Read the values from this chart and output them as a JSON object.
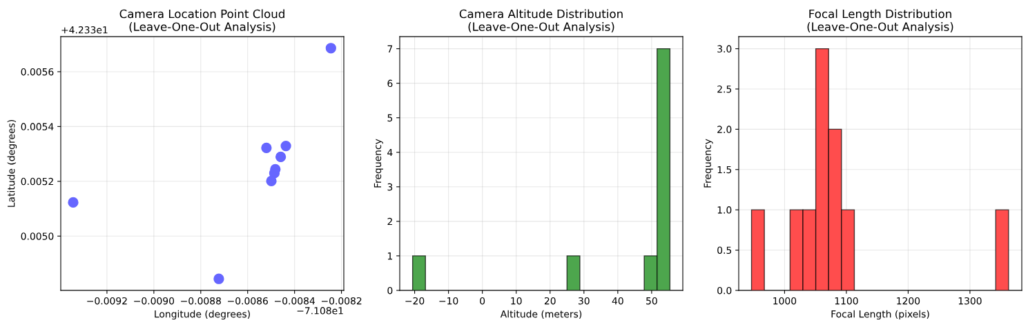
{
  "chart_data": [
    {
      "type": "scatter",
      "title": "Camera Location Point Cloud\n(Leave-One-Out Analysis)",
      "xlabel": "Longitude (degrees)",
      "ylabel": "Latitude (degrees)",
      "x": [
        -0.008245,
        -0.00852,
        -0.008437,
        -0.008459,
        -0.008482,
        -0.008486,
        -0.008499,
        -0.009344,
        -0.008723
      ],
      "values": [
        0.005686,
        0.005322,
        0.005329,
        0.005289,
        0.005244,
        0.00523,
        0.005201,
        0.005123,
        0.004844
      ],
      "color": "#6666ff",
      "marker": "circle",
      "xlim": [
        -0.009397,
        -0.00819
      ],
      "ylim": [
        0.004802,
        0.005728
      ],
      "xticks": [
        {
          "value": -0.0092,
          "label": "−0.0092"
        },
        {
          "value": -0.009,
          "label": "−0.0090"
        },
        {
          "value": -0.0088,
          "label": "−0.0088"
        },
        {
          "value": -0.0086,
          "label": "−0.0086"
        },
        {
          "value": -0.0084,
          "label": "−0.0084"
        },
        {
          "value": -0.0082,
          "label": "−0.0082"
        }
      ],
      "yticks": [
        {
          "value": 0.005,
          "label": "0.0050"
        },
        {
          "value": 0.0052,
          "label": "0.0052"
        },
        {
          "value": 0.0054,
          "label": "0.0054"
        },
        {
          "value": 0.0056,
          "label": "0.0056"
        }
      ],
      "annotations": [
        "+4.233e1",
        "−7.108e1"
      ],
      "grid": true
    },
    {
      "type": "histogram",
      "title": "Camera Altitude Distribution\n(Leave-One-Out Analysis)",
      "xlabel": "Altitude (meters)",
      "ylabel": "Frequency",
      "bins": [
        -20.6,
        -16.8,
        -13.0,
        -9.2,
        -5.4,
        -1.6,
        2.2,
        6.0,
        9.8,
        13.6,
        17.4,
        21.2,
        25.0,
        28.8,
        32.6,
        36.4,
        40.2,
        44.0,
        47.8,
        51.6,
        55.4
      ],
      "values": [
        1,
        0,
        0,
        0,
        0,
        0,
        0,
        0,
        0,
        0,
        0,
        0,
        1,
        0,
        0,
        0,
        0,
        0,
        1,
        7
      ],
      "color": "#4da64d",
      "xlim": [
        -24.4,
        59.2
      ],
      "ylim": [
        0,
        7.35
      ],
      "xticks": [
        -20,
        -10,
        0,
        10,
        20,
        30,
        40,
        50
      ],
      "yticks": [
        0,
        1,
        2,
        3,
        4,
        5,
        6,
        7
      ],
      "grid": true
    },
    {
      "type": "histogram",
      "title": "Focal Length Distribution\n(Leave-One-Out Analysis)",
      "xlabel": "Focal Length (pixels)",
      "ylabel": "Frequency",
      "bins": [
        946.5,
        967.3,
        988.1,
        1008.9,
        1029.7,
        1050.5,
        1071.3,
        1092.1,
        1112.9,
        1133.7,
        1154.5,
        1175.3,
        1196.1,
        1216.9,
        1237.7,
        1258.5,
        1279.3,
        1300.1,
        1320.9,
        1341.7,
        1362.5
      ],
      "values": [
        1,
        0,
        0,
        1,
        1,
        3,
        2,
        1,
        0,
        0,
        0,
        0,
        0,
        0,
        0,
        0,
        0,
        0,
        0,
        1
      ],
      "color": "#ff4d4d",
      "xlim": [
        925.8,
        1383.9
      ],
      "ylim": [
        0,
        3.15
      ],
      "xticks": [
        1000,
        1100,
        1200,
        1300
      ],
      "yticks": [
        {
          "value": 0,
          "label": "0.0"
        },
        0.5,
        {
          "value": 1,
          "label": "1.0"
        },
        1.5,
        {
          "value": 2,
          "label": "2.0"
        },
        2.5,
        {
          "value": 3,
          "label": "3.0"
        }
      ],
      "grid": true
    }
  ]
}
